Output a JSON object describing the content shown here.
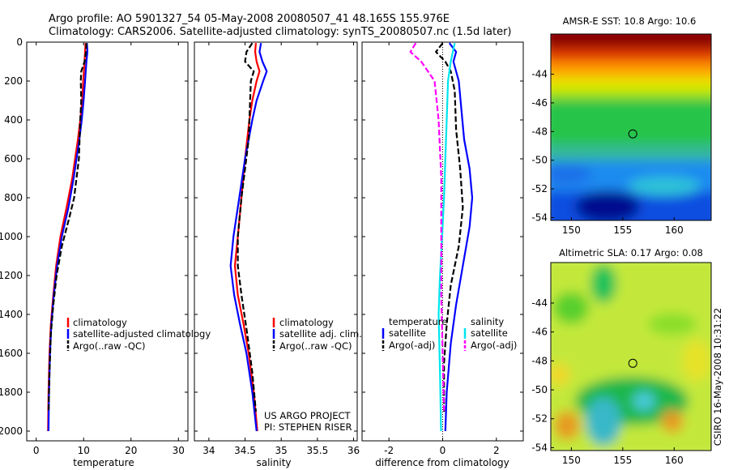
{
  "header": {
    "line1": "Argo profile: AO 5901327_54 05-May-2008 20080507_41 48.165S 155.976E",
    "line2": "Climatology: CARS2006. Satellite-adjusted climatology: synTS_20080507.nc (1.5d later)"
  },
  "credits": {
    "project": "US ARGO PROJECT",
    "pi": "PI: STEPHEN RISER",
    "stamp": "CSIRO 16-May-2008 10:31:22"
  },
  "colors": {
    "climatology": "#ff0000",
    "satellite": "#0000ff",
    "argo": "#000000",
    "temp_sat_diff": "#00e5ee",
    "sal_argo_diff": "#ff00ff"
  },
  "chart_data": [
    {
      "type": "line",
      "id": "temperature",
      "xlabel": "temperature",
      "ylabel": "",
      "xlim": [
        -2,
        32
      ],
      "ylim": [
        2050,
        0
      ],
      "y_reversed": true,
      "xticks": [
        0,
        10,
        20,
        30
      ],
      "yticks": [
        0,
        200,
        400,
        600,
        800,
        1000,
        1200,
        1400,
        1600,
        1800,
        2000
      ],
      "legend": {
        "placement": "lower-right",
        "entries": [
          "climatology",
          "satellite-adjusted climatology",
          "Argo(..raw -QC)"
        ]
      },
      "series": [
        {
          "name": "climatology",
          "color": "red",
          "style": "solid",
          "x": [
            10.4,
            10.3,
            10.2,
            9.9,
            9.7,
            9.3,
            8.8,
            7.6,
            6.4,
            5.1,
            4.2,
            3.6,
            3.1,
            2.8,
            2.6,
            2.5
          ],
          "y": [
            5,
            50,
            100,
            200,
            300,
            400,
            500,
            700,
            850,
            1000,
            1150,
            1300,
            1450,
            1600,
            1800,
            2000
          ]
        },
        {
          "name": "satellite-adjusted climatology",
          "color": "blue",
          "style": "solid",
          "x": [
            10.7,
            10.8,
            10.6,
            10.3,
            10.0,
            9.6,
            9.1,
            7.9,
            6.8,
            5.4,
            4.4,
            3.7,
            3.2,
            2.9,
            2.7,
            2.6
          ],
          "y": [
            5,
            50,
            100,
            200,
            300,
            400,
            500,
            700,
            850,
            1000,
            1150,
            1300,
            1450,
            1600,
            1800,
            2000
          ]
        },
        {
          "name": "Argo(..raw -QC)",
          "color": "black",
          "style": "dashed",
          "x": [
            10.6,
            10.5,
            10.2,
            9.5,
            9.4,
            9.5,
            9.3,
            9.0,
            8.0,
            7.0,
            5.4,
            4.3,
            3.6,
            3.1,
            2.8,
            2.6
          ],
          "y": [
            5,
            50,
            100,
            150,
            200,
            300,
            400,
            600,
            800,
            900,
            1050,
            1200,
            1350,
            1500,
            1700,
            1900
          ]
        }
      ]
    },
    {
      "type": "line",
      "id": "salinity",
      "xlabel": "salinity",
      "ylabel": "",
      "xlim": [
        33.8,
        36.05
      ],
      "ylim": [
        2050,
        0
      ],
      "y_reversed": true,
      "xticks": [
        34,
        34.5,
        35,
        35.5,
        36
      ],
      "legend": {
        "placement": "lower-right",
        "entries": [
          "climatology",
          "satellite adj. clim.",
          "Argo(..raw -QC)"
        ]
      },
      "series": [
        {
          "name": "climatology",
          "color": "red",
          "style": "solid",
          "x": [
            34.65,
            34.64,
            34.66,
            34.7,
            34.66,
            34.6,
            34.56,
            34.5,
            34.45,
            34.4,
            34.36,
            34.4,
            34.48,
            34.55,
            34.62,
            34.67
          ],
          "y": [
            5,
            50,
            100,
            150,
            200,
            300,
            400,
            600,
            800,
            1000,
            1150,
            1300,
            1450,
            1600,
            1800,
            2000
          ]
        },
        {
          "name": "satellite adj. clim.",
          "color": "blue",
          "style": "solid",
          "x": [
            34.72,
            34.7,
            34.74,
            34.8,
            34.75,
            34.66,
            34.6,
            34.5,
            34.42,
            34.34,
            34.3,
            34.35,
            34.43,
            34.52,
            34.6,
            34.66
          ],
          "y": [
            5,
            50,
            100,
            150,
            200,
            300,
            400,
            600,
            800,
            1000,
            1150,
            1300,
            1450,
            1600,
            1800,
            2000
          ]
        },
        {
          "name": "Argo(..raw -QC)",
          "color": "black",
          "style": "dashed",
          "x": [
            34.6,
            34.52,
            34.5,
            34.62,
            34.58,
            34.55,
            34.45,
            34.4,
            34.4,
            34.45,
            34.53,
            34.6,
            34.65
          ],
          "y": [
            5,
            50,
            100,
            150,
            200,
            500,
            800,
            1000,
            1150,
            1300,
            1500,
            1700,
            1900
          ]
        }
      ]
    },
    {
      "type": "line",
      "id": "difference",
      "xlabel": "difference from climatology",
      "ylabel": "",
      "xlim": [
        -3,
        3
      ],
      "ylim": [
        2050,
        0
      ],
      "y_reversed": true,
      "xticks": [
        -2,
        0,
        2
      ],
      "legend": {
        "placement": "lower-center",
        "entries": [
          "temperature",
          "satellite",
          "Argo(-adj)",
          "salinity",
          "satellite",
          "Argo(-adj)"
        ]
      },
      "series": [
        {
          "name": "temperature satellite",
          "color": "blue",
          "style": "solid",
          "x": [
            0.25,
            0.5,
            0.4,
            0.6,
            0.7,
            0.8,
            1.0,
            1.1,
            1.0,
            0.75,
            0.5,
            0.3,
            0.15,
            0.1
          ],
          "y": [
            5,
            50,
            100,
            200,
            350,
            500,
            650,
            800,
            950,
            1150,
            1350,
            1550,
            1800,
            2000
          ]
        },
        {
          "name": "temperature Argo(-adj)",
          "color": "black",
          "style": "dashed",
          "x": [
            0,
            -0.25,
            0.1,
            0.3,
            0.45,
            0.5,
            0.65,
            0.75,
            0.6,
            0.3,
            0.15,
            0.05,
            0.05
          ],
          "y": [
            5,
            50,
            100,
            150,
            250,
            450,
            650,
            850,
            1050,
            1250,
            1450,
            1650,
            1900
          ]
        },
        {
          "name": "salinity satellite",
          "color": "cyan",
          "style": "solid",
          "x": [
            0.45,
            0.3,
            0.2,
            0.15,
            0.1,
            0.05,
            -0.02,
            -0.1,
            -0.15,
            -0.1,
            -0.06
          ],
          "y": [
            5,
            100,
            200,
            400,
            600,
            800,
            1000,
            1200,
            1400,
            1700,
            2000
          ]
        },
        {
          "name": "salinity Argo(-adj)",
          "color": "magenta",
          "style": "dashed",
          "x": [
            -1.0,
            -1.2,
            -0.8,
            -0.55,
            -0.3,
            -0.15,
            -0.05,
            -0.05,
            -0.05,
            0,
            0.05
          ],
          "y": [
            5,
            50,
            100,
            150,
            200,
            400,
            700,
            1000,
            1300,
            1600,
            1900
          ]
        }
      ]
    },
    {
      "type": "heatmap",
      "id": "sst-map",
      "title": "AMSR-E SST: 10.8 Argo: 10.6",
      "xlim": [
        148,
        163.6
      ],
      "ylim": [
        -54.2,
        -41.2
      ],
      "xticks": [
        150,
        155,
        160
      ],
      "yticks": [
        -44,
        -46,
        -48,
        -50,
        -52,
        -54
      ],
      "marker": {
        "lon": 155.976,
        "lat": -48.165
      },
      "description_colors": [
        "dark red north",
        "orange/yellow",
        "green band",
        "cyan/blue",
        "dark blue south"
      ]
    },
    {
      "type": "heatmap",
      "id": "sla-map",
      "title": "Altimetric SLA: 0.17 Argo: 0.08",
      "xlim": [
        148,
        163.6
      ],
      "ylim": [
        -54.2,
        -41.2
      ],
      "xticks": [
        150,
        155,
        160
      ],
      "yticks": [
        -44,
        -46,
        -48,
        -50,
        -52,
        -54
      ],
      "marker": {
        "lon": 155.976,
        "lat": -48.165
      }
    }
  ],
  "legends": {
    "temperature": [
      "climatology",
      "satellite-adjusted climatology",
      "Argo(..raw -QC)"
    ],
    "salinity": [
      "climatology",
      "satellite adj. clim.",
      "Argo(..raw -QC)"
    ],
    "difference_left_title": "temperature",
    "difference_right_title": "salinity",
    "difference_left": [
      "satellite",
      "Argo(-adj)"
    ],
    "difference_right": [
      "satellite",
      "Argo(-adj)"
    ]
  }
}
